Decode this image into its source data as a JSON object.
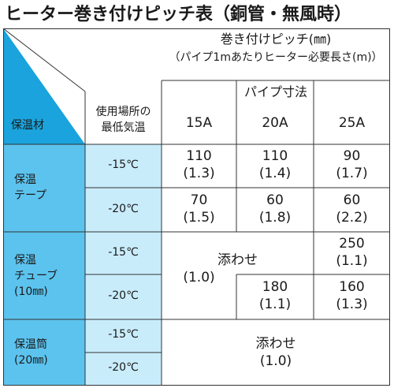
{
  "title": "ヒーター巻き付けピッチ表（銅管・無風時）",
  "header": {
    "pitch_title": "巻き付けピッチ(㎜)",
    "pitch_subtitle": "（パイプ1mあたりヒーター必要長さ(m)）",
    "pipe_size_label": "パイプ寸法",
    "material_label": "保温材",
    "temp_label_1": "使用場所の",
    "temp_label_2": "最低気温",
    "sizes": [
      "15A",
      "20A",
      "25A"
    ]
  },
  "rows": {
    "tape": {
      "material_line1": "保温",
      "material_line2": "テープ",
      "r1": {
        "temp": "-15℃",
        "c15": [
          "110",
          "(1.3)"
        ],
        "c20": [
          "110",
          "(1.4)"
        ],
        "c25": [
          "90",
          "(1.7)"
        ]
      },
      "r2": {
        "temp": "-20℃",
        "c15": [
          "70",
          "(1.5)"
        ],
        "c20": [
          "60",
          "(1.8)"
        ],
        "c25": [
          "60",
          "(2.2)"
        ]
      }
    },
    "tube": {
      "material_line1": "保温",
      "material_line2": "チューブ",
      "material_line3": "(10㎜)",
      "merged": [
        "添わせ",
        "(1.0)"
      ],
      "r1": {
        "temp": "-15℃",
        "c25": [
          "250",
          "(1.1)"
        ]
      },
      "r2": {
        "temp": "-20℃",
        "c20": [
          "180",
          "(1.1)"
        ],
        "c25": [
          "160",
          "(1.3)"
        ]
      }
    },
    "cylinder": {
      "material_line1": "保温筒",
      "material_line2": "(20㎜)",
      "merged": [
        "添わせ",
        "(1.0)"
      ],
      "r1": {
        "temp": "-15℃"
      },
      "r2": {
        "temp": "-20℃"
      }
    }
  },
  "colors": {
    "dark_blue": "#1aa3dc",
    "mid_blue": "#5cc3ee",
    "light_blue": "#a6dff7",
    "pale_blue": "#c9ecfb",
    "line": "#333333"
  }
}
